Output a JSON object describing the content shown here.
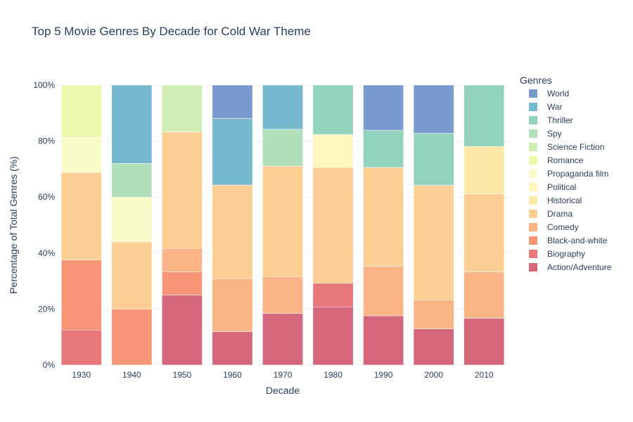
{
  "chart_data": {
    "type": "bar",
    "stacked": true,
    "normalized": true,
    "title": "Top 5 Movie Genres By Decade for Cold War Theme",
    "xlabel": "Decade",
    "ylabel": "Percentage of Total Genres (%)",
    "ylim": [
      0,
      100
    ],
    "y_ticks": [
      "0%",
      "20%",
      "40%",
      "60%",
      "80%",
      "100%"
    ],
    "y_tick_values": [
      0,
      20,
      40,
      60,
      80,
      100
    ],
    "grid": true,
    "legend_title": "Genres",
    "legend_position": "right",
    "categories": [
      "1930",
      "1940",
      "1950",
      "1960",
      "1970",
      "1980",
      "1990",
      "2000",
      "2010"
    ],
    "series": [
      {
        "name": "Action/Adventure",
        "color": "#d0566f",
        "values": [
          0,
          0,
          25,
          11.9,
          18.4,
          20.8,
          17.6,
          12.9,
          16.7
        ]
      },
      {
        "name": "Biography",
        "color": "#e4686d",
        "values": [
          12.5,
          0,
          0,
          0,
          0,
          8.4,
          0,
          0,
          0
        ]
      },
      {
        "name": "Black-and-white",
        "color": "#f68a68",
        "values": [
          25,
          20,
          8.3,
          0,
          0,
          0,
          0,
          0,
          0
        ]
      },
      {
        "name": "Comedy",
        "color": "#fbac78",
        "values": [
          0,
          0,
          8.4,
          19,
          13.2,
          0,
          17.7,
          10.3,
          16.6
        ]
      },
      {
        "name": "Drama",
        "color": "#fdca8a",
        "values": [
          31.3,
          24,
          41.6,
          33.4,
          39.5,
          41.4,
          35.3,
          41,
          27.9
        ]
      },
      {
        "name": "Historical",
        "color": "#fee59e",
        "values": [
          0,
          0,
          0,
          0,
          0,
          0,
          0,
          0,
          16.9
        ]
      },
      {
        "name": "Political",
        "color": "#fef5b6",
        "values": [
          0,
          0,
          0,
          0,
          0,
          11.8,
          0,
          0,
          0
        ]
      },
      {
        "name": "Propaganda film",
        "color": "#f7fbc2",
        "values": [
          12.5,
          16,
          0,
          0,
          0,
          0,
          0,
          0,
          0
        ]
      },
      {
        "name": "Romance",
        "color": "#e9f8a6",
        "values": [
          18.7,
          0,
          0,
          0,
          0,
          0,
          0,
          0,
          0
        ]
      },
      {
        "name": "Science Fiction",
        "color": "#cbebad",
        "values": [
          0,
          0,
          16.7,
          0,
          0,
          0,
          0,
          0,
          0
        ]
      },
      {
        "name": "Spy",
        "color": "#a9dcb3",
        "values": [
          0,
          12,
          0,
          0,
          13.1,
          0,
          0,
          0,
          0
        ]
      },
      {
        "name": "Thriller",
        "color": "#85ceb6",
        "values": [
          0,
          0,
          0,
          0,
          0,
          17.6,
          13.3,
          18.6,
          21.9
        ]
      },
      {
        "name": "War",
        "color": "#67b0c8",
        "values": [
          0,
          28,
          0,
          23.8,
          15.8,
          0,
          0,
          0,
          0
        ]
      },
      {
        "name": "World",
        "color": "#6a8fc8",
        "values": [
          0,
          0,
          0,
          11.9,
          0,
          0,
          16.1,
          17.2,
          0
        ]
      }
    ]
  }
}
